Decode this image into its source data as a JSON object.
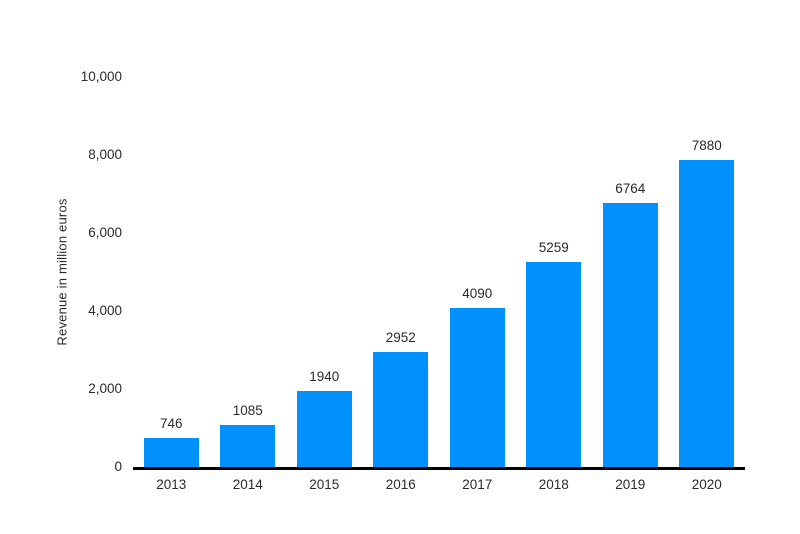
{
  "chart_data": {
    "type": "bar",
    "title": "",
    "xlabel": "",
    "ylabel": "Revenue in million euros",
    "categories": [
      "2013",
      "2014",
      "2015",
      "2016",
      "2017",
      "2018",
      "2019",
      "2020"
    ],
    "values": [
      746,
      1085,
      1940,
      2952,
      4090,
      5259,
      6764,
      7880
    ],
    "value_labels": [
      "746",
      "1085",
      "1940",
      "2952",
      "4090",
      "5259",
      "6764",
      "7880"
    ],
    "ylim": [
      0,
      10000
    ],
    "ytick_values": [
      0,
      2000,
      4000,
      6000,
      8000,
      10000
    ],
    "ytick_labels": [
      "0",
      "2,000",
      "4,000",
      "6,000",
      "8,000",
      "10,000"
    ],
    "grid": false,
    "legend": false,
    "value_labels_shown": true
  },
  "colors": {
    "bar": "#0091fc",
    "text": "#2b2b2b",
    "axis_line": "#000000",
    "background": "#ffffff"
  }
}
